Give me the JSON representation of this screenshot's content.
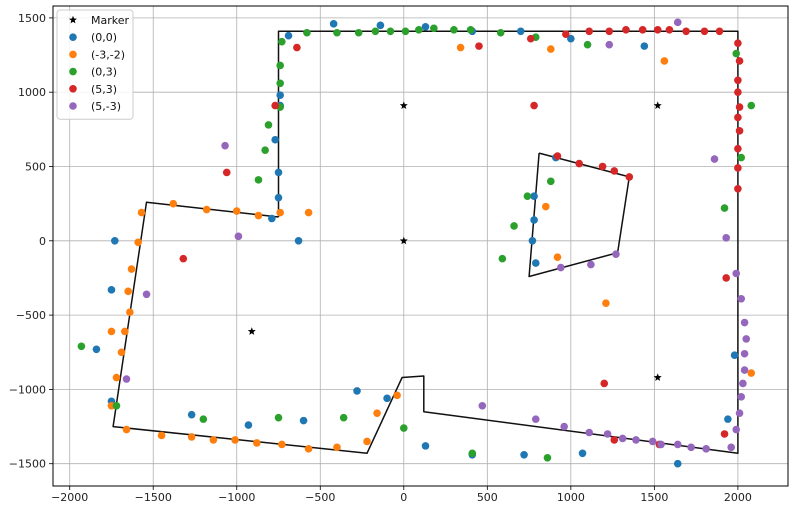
{
  "chart_data": {
    "type": "scatter",
    "title": "",
    "xlabel": "",
    "ylabel": "",
    "xlim": [
      -2100,
      2300
    ],
    "ylim": [
      -1650,
      1580
    ],
    "xticks": [
      -2000,
      -1500,
      -1000,
      -500,
      0,
      500,
      1000,
      1500,
      2000
    ],
    "yticks": [
      -1500,
      -1000,
      -500,
      0,
      500,
      1000,
      1500
    ],
    "grid": true,
    "legend_position": "upper-left",
    "legend": [
      "Marker",
      "(0,0)",
      "(-3,-2)",
      "(0,3)",
      "(5,3)",
      "(5,-3)"
    ],
    "outlines": [
      {
        "name": "outer boundary",
        "color": "#111111",
        "points": [
          [
            -750,
            160
          ],
          [
            -750,
            1410
          ],
          [
            2000,
            1410
          ],
          [
            2000,
            -1430
          ],
          [
            120,
            -1150
          ],
          [
            120,
            -910
          ],
          [
            -10,
            -920
          ],
          [
            -220,
            -1430
          ],
          [
            -1740,
            -1250
          ],
          [
            -1540,
            260
          ],
          [
            -750,
            160
          ]
        ]
      },
      {
        "name": "inner boundary",
        "color": "#111111",
        "points": [
          [
            810,
            590
          ],
          [
            1350,
            430
          ],
          [
            1280,
            -80
          ],
          [
            750,
            -240
          ],
          [
            810,
            590
          ]
        ]
      }
    ],
    "markers": {
      "name": "Marker",
      "symbol": "star",
      "color": "#000000",
      "points": [
        [
          0,
          910
        ],
        [
          1520,
          910
        ],
        [
          0,
          0
        ],
        [
          -910,
          -610
        ],
        [
          1520,
          -920
        ]
      ]
    },
    "series": [
      {
        "name": "(0,0)",
        "color": "#1f77b4",
        "points": [
          [
            -1730,
            0
          ],
          [
            -1750,
            -330
          ],
          [
            -1840,
            -730
          ],
          [
            -1750,
            -1080
          ],
          [
            -1270,
            -1170
          ],
          [
            -930,
            -1240
          ],
          [
            -600,
            -1210
          ],
          [
            -630,
            0
          ],
          [
            -790,
            150
          ],
          [
            -750,
            290
          ],
          [
            -750,
            460
          ],
          [
            -770,
            680
          ],
          [
            -740,
            910
          ],
          [
            -740,
            980
          ],
          [
            -690,
            1380
          ],
          [
            -420,
            1460
          ],
          [
            -140,
            1450
          ],
          [
            130,
            1440
          ],
          [
            410,
            1410
          ],
          [
            700,
            1410
          ],
          [
            1000,
            1360
          ],
          [
            1440,
            1310
          ],
          [
            780,
            300
          ],
          [
            780,
            140
          ],
          [
            770,
            0
          ],
          [
            790,
            -150
          ],
          [
            910,
            560
          ],
          [
            -280,
            -1010
          ],
          [
            -100,
            -1060
          ],
          [
            130,
            -1380
          ],
          [
            410,
            -1440
          ],
          [
            720,
            -1440
          ],
          [
            1070,
            -1430
          ],
          [
            1640,
            -1500
          ],
          [
            1980,
            -770
          ],
          [
            1940,
            -1200
          ]
        ]
      },
      {
        "name": "(-3,-2)",
        "color": "#ff7f0e",
        "points": [
          [
            -1570,
            190
          ],
          [
            -1590,
            -10
          ],
          [
            -1630,
            -190
          ],
          [
            -1650,
            -340
          ],
          [
            -1640,
            -480
          ],
          [
            -1670,
            -610
          ],
          [
            -1750,
            -610
          ],
          [
            -1690,
            -750
          ],
          [
            -1720,
            -920
          ],
          [
            -1750,
            -1110
          ],
          [
            -1660,
            -1270
          ],
          [
            -1450,
            -1310
          ],
          [
            -1270,
            -1320
          ],
          [
            -1140,
            -1340
          ],
          [
            -1010,
            -1340
          ],
          [
            -880,
            -1360
          ],
          [
            -730,
            -1370
          ],
          [
            -570,
            -1400
          ],
          [
            -400,
            -1390
          ],
          [
            -220,
            -1350
          ],
          [
            -160,
            -1160
          ],
          [
            -40,
            -1040
          ],
          [
            -1380,
            250
          ],
          [
            -1180,
            210
          ],
          [
            -1000,
            200
          ],
          [
            -870,
            170
          ],
          [
            -740,
            190
          ],
          [
            -570,
            190
          ],
          [
            340,
            1300
          ],
          [
            880,
            1290
          ],
          [
            1560,
            1210
          ],
          [
            850,
            230
          ],
          [
            920,
            -110
          ],
          [
            1210,
            -420
          ],
          [
            2080,
            -890
          ]
        ]
      },
      {
        "name": "(0,3)",
        "color": "#2ca02c",
        "points": [
          [
            -1930,
            -710
          ],
          [
            -1720,
            -1110
          ],
          [
            -1200,
            -1200
          ],
          [
            -750,
            -1190
          ],
          [
            -360,
            -1190
          ],
          [
            0,
            -1260
          ],
          [
            410,
            -1430
          ],
          [
            860,
            -1460
          ],
          [
            -870,
            410
          ],
          [
            -830,
            610
          ],
          [
            -810,
            780
          ],
          [
            -740,
            900
          ],
          [
            -740,
            1060
          ],
          [
            -740,
            1180
          ],
          [
            -730,
            1340
          ],
          [
            -580,
            1400
          ],
          [
            -400,
            1400
          ],
          [
            -270,
            1400
          ],
          [
            -170,
            1410
          ],
          [
            -80,
            1410
          ],
          [
            10,
            1410
          ],
          [
            90,
            1420
          ],
          [
            180,
            1430
          ],
          [
            300,
            1420
          ],
          [
            400,
            1420
          ],
          [
            580,
            1400
          ],
          [
            790,
            1370
          ],
          [
            1100,
            1320
          ],
          [
            1990,
            1260
          ],
          [
            2020,
            560
          ],
          [
            2080,
            910
          ],
          [
            1920,
            220
          ],
          [
            660,
            100
          ],
          [
            740,
            300
          ],
          [
            880,
            400
          ],
          [
            590,
            -120
          ]
        ]
      },
      {
        "name": "(5,3)",
        "color": "#d62728",
        "points": [
          [
            -1060,
            460
          ],
          [
            -1320,
            -120
          ],
          [
            -770,
            910
          ],
          [
            -640,
            1300
          ],
          [
            450,
            1310
          ],
          [
            760,
            1360
          ],
          [
            780,
            910
          ],
          [
            920,
            570
          ],
          [
            1050,
            520
          ],
          [
            1190,
            500
          ],
          [
            1260,
            470
          ],
          [
            1350,
            430
          ],
          [
            970,
            1390
          ],
          [
            1110,
            1410
          ],
          [
            1230,
            1410
          ],
          [
            1330,
            1420
          ],
          [
            1430,
            1420
          ],
          [
            1520,
            1420
          ],
          [
            1590,
            1420
          ],
          [
            1690,
            1410
          ],
          [
            1800,
            1410
          ],
          [
            1890,
            1410
          ],
          [
            2000,
            1330
          ],
          [
            2010,
            1210
          ],
          [
            2000,
            1080
          ],
          [
            2000,
            1000
          ],
          [
            2010,
            900
          ],
          [
            2000,
            830
          ],
          [
            2010,
            740
          ],
          [
            2000,
            620
          ],
          [
            2000,
            490
          ],
          [
            2000,
            350
          ],
          [
            1930,
            -250
          ],
          [
            1200,
            -960
          ],
          [
            1920,
            -1300
          ],
          [
            1530,
            -1370
          ],
          [
            1260,
            -1340
          ]
        ]
      },
      {
        "name": "(5,-3)",
        "color": "#9467bd",
        "points": [
          [
            -1070,
            640
          ],
          [
            -990,
            30
          ],
          [
            -1540,
            -360
          ],
          [
            -1660,
            -930
          ],
          [
            470,
            -1110
          ],
          [
            790,
            -1200
          ],
          [
            960,
            -1250
          ],
          [
            1110,
            -1290
          ],
          [
            1220,
            -1300
          ],
          [
            1310,
            -1330
          ],
          [
            1390,
            -1340
          ],
          [
            1490,
            -1350
          ],
          [
            1540,
            -1370
          ],
          [
            1640,
            -1370
          ],
          [
            1720,
            -1390
          ],
          [
            1810,
            -1400
          ],
          [
            1960,
            -1390
          ],
          [
            1990,
            -1270
          ],
          [
            2010,
            -1160
          ],
          [
            2020,
            -1050
          ],
          [
            2030,
            -960
          ],
          [
            2040,
            -870
          ],
          [
            2040,
            -760
          ],
          [
            2050,
            -660
          ],
          [
            2040,
            -550
          ],
          [
            2020,
            -390
          ],
          [
            1990,
            -220
          ],
          [
            1930,
            20
          ],
          [
            1860,
            550
          ],
          [
            940,
            -180
          ],
          [
            1120,
            -160
          ],
          [
            1270,
            -90
          ],
          [
            1640,
            1470
          ],
          [
            1230,
            1320
          ]
        ]
      }
    ]
  }
}
